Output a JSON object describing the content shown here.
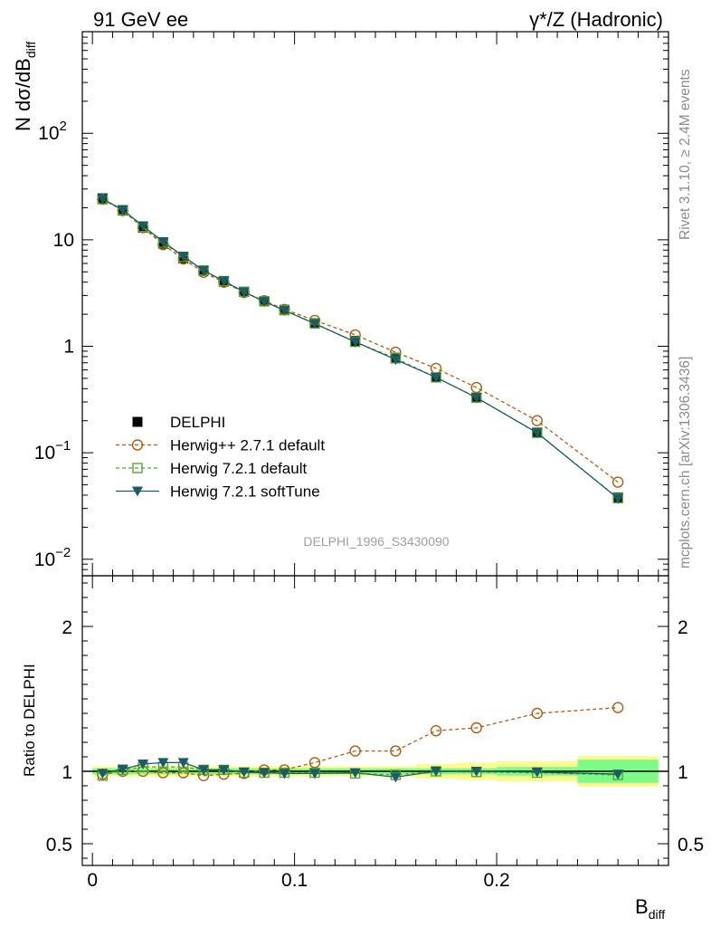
{
  "header": {
    "left_title": "91 GeV ee",
    "right_title": "γ*/Z (Hadronic)"
  },
  "side_labels": {
    "rivet": "Rivet 3.1.10, ≥ 2.4M events",
    "mcplots": "mcplots.cern.ch [arXiv:1306.3436]"
  },
  "analysis_id": "DELPHI_1996_S3430090",
  "chart_data": [
    {
      "type": "line",
      "panel": "main",
      "ylabel": "N dσ/dB_diff",
      "yscale": "log",
      "ylim": [
        0.007,
        900
      ],
      "xlim": [
        -0.005,
        0.285
      ],
      "y_tick_labels": [
        "10^-2",
        "10^-1",
        "1",
        "10",
        "10^2"
      ],
      "legend_placement": "lower-left",
      "x": [
        0.005,
        0.015,
        0.025,
        0.035,
        0.045,
        0.055,
        0.065,
        0.075,
        0.085,
        0.095,
        0.11,
        0.13,
        0.15,
        0.17,
        0.19,
        0.22,
        0.26
      ],
      "series": [
        {
          "name": "DELPHI",
          "color": "#000000",
          "marker": "filled-square",
          "values": [
            24.5,
            18.8,
            13.0,
            9.2,
            6.7,
            5.1,
            4.05,
            3.25,
            2.65,
            2.2,
            1.65,
            1.12,
            0.78,
            0.51,
            0.33,
            0.155,
            0.038
          ]
        },
        {
          "name": "Herwig++ 2.7.1 default",
          "color": "#b35c0f",
          "marker": "open-circle",
          "values": [
            24.0,
            18.8,
            13.0,
            9.0,
            6.6,
            4.95,
            4.0,
            3.2,
            2.68,
            2.22,
            1.75,
            1.28,
            0.88,
            0.62,
            0.41,
            0.2,
            0.053
          ]
        },
        {
          "name": "Herwig 7.2.1 default",
          "color": "#4fa82f",
          "marker": "open-square",
          "values": [
            24.0,
            19.0,
            13.2,
            9.4,
            6.9,
            5.15,
            4.1,
            3.25,
            2.64,
            2.18,
            1.64,
            1.1,
            0.77,
            0.51,
            0.33,
            0.154,
            0.0375
          ]
        },
        {
          "name": "Herwig 7.2.1 softTune",
          "color": "#1b5c66",
          "marker": "filled-triangle-down",
          "values": [
            24.2,
            19.1,
            13.5,
            9.6,
            7.0,
            5.15,
            4.1,
            3.24,
            2.63,
            2.17,
            1.63,
            1.1,
            0.75,
            0.51,
            0.33,
            0.154,
            0.0372
          ]
        }
      ]
    },
    {
      "type": "line",
      "panel": "ratio",
      "ylabel": "Ratio to DELPHI",
      "xlabel": "B_diff",
      "ylim": [
        0.35,
        2.35
      ],
      "xlim": [
        -0.005,
        0.285
      ],
      "y_ticks": [
        0.5,
        1,
        2
      ],
      "y_tick_labels": [
        "0.5",
        "1",
        "2"
      ],
      "x_ticks": [
        0,
        0.1,
        0.2
      ],
      "x_tick_labels": [
        "0",
        "0.1",
        "0.2"
      ],
      "x": [
        0.005,
        0.015,
        0.025,
        0.035,
        0.045,
        0.055,
        0.065,
        0.075,
        0.085,
        0.095,
        0.11,
        0.13,
        0.15,
        0.17,
        0.19,
        0.22,
        0.26
      ],
      "bin_edges": [
        0,
        0.01,
        0.02,
        0.03,
        0.04,
        0.05,
        0.06,
        0.07,
        0.08,
        0.09,
        0.1,
        0.12,
        0.14,
        0.16,
        0.18,
        0.2,
        0.24,
        0.28
      ],
      "uncertainty_bands": {
        "stat_color": "#7dfa88",
        "total_color": "#fcfc8e",
        "stat_halfwidth": [
          0.02,
          0.02,
          0.02,
          0.02,
          0.02,
          0.02,
          0.02,
          0.02,
          0.02,
          0.02,
          0.02,
          0.02,
          0.02,
          0.02,
          0.02,
          0.03,
          0.08
        ],
        "total_halfwidth": [
          0.035,
          0.035,
          0.035,
          0.035,
          0.035,
          0.035,
          0.035,
          0.035,
          0.035,
          0.035,
          0.035,
          0.035,
          0.035,
          0.05,
          0.06,
          0.07,
          0.105
        ]
      },
      "series": [
        {
          "name": "Herwig++ 2.7.1 default",
          "color": "#b35c0f",
          "marker": "open-circle",
          "values": [
            0.98,
            1.0,
            1.0,
            0.99,
            0.99,
            0.97,
            0.98,
            0.985,
            1.01,
            1.01,
            1.06,
            1.14,
            1.14,
            1.28,
            1.3,
            1.4,
            1.44
          ]
        },
        {
          "name": "Herwig 7.2.1 default",
          "color": "#4fa82f",
          "marker": "open-square",
          "values": [
            0.97,
            1.01,
            1.03,
            1.03,
            1.03,
            1.01,
            1.01,
            0.99,
            0.99,
            0.99,
            0.99,
            0.985,
            0.975,
            1.0,
            0.995,
            0.99,
            0.975
          ]
        },
        {
          "name": "Herwig 7.2.1 softTune",
          "color": "#1b5c66",
          "marker": "filled-triangle-down",
          "values": [
            0.985,
            1.015,
            1.05,
            1.06,
            1.06,
            1.01,
            1.01,
            0.995,
            0.99,
            0.985,
            0.985,
            0.99,
            0.96,
            1.0,
            1.0,
            0.995,
            0.98
          ]
        }
      ]
    }
  ]
}
